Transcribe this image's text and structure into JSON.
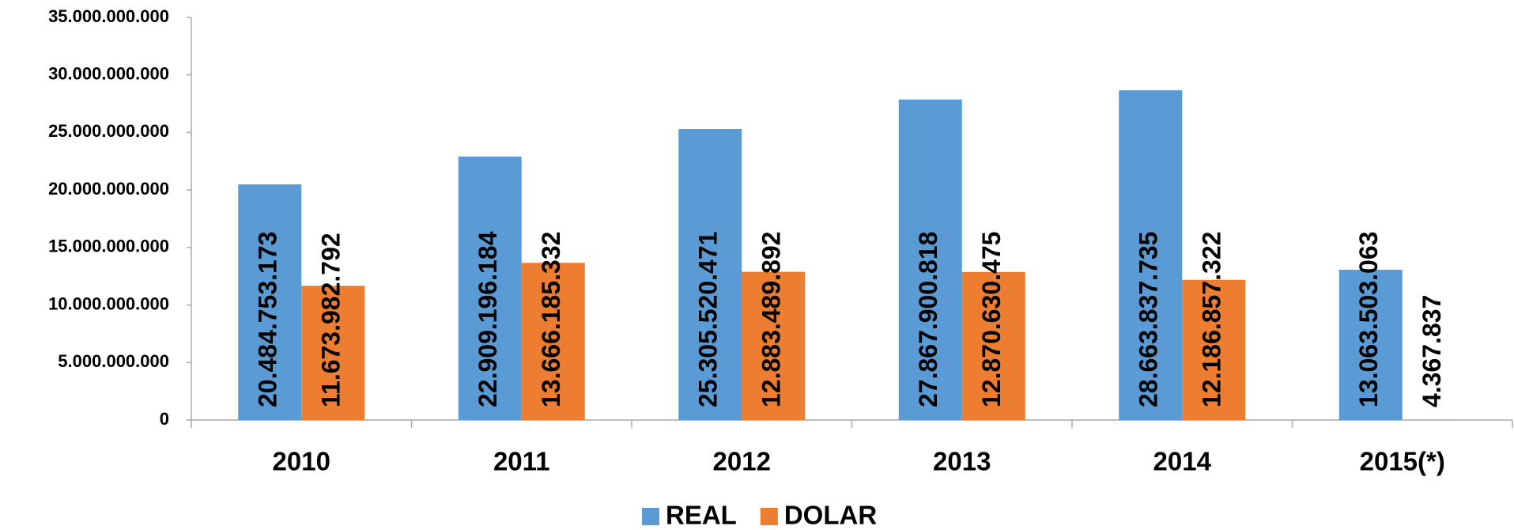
{
  "chart_data": {
    "type": "bar",
    "categories": [
      "2010",
      "2011",
      "2012",
      "2013",
      "2014",
      "2015(*)"
    ],
    "series": [
      {
        "name": "REAL",
        "color": "#5b9bd5",
        "values": [
          20484753173,
          22909196184,
          25305520471,
          27867900818,
          28663837735,
          13063503063
        ],
        "value_labels": [
          "20.484.753.173",
          "22.909.196.184",
          "25.305.520.471",
          "27.867.900.818",
          "28.663.837.735",
          "13.063.503.063"
        ]
      },
      {
        "name": "DOLAR",
        "color": "#ed7d31",
        "values": [
          11673982792,
          13666185332,
          12883489892,
          12870630475,
          12186857322,
          4367837
        ],
        "value_labels": [
          "11.673.982.792",
          "13.666.185.332",
          "12.883.489.892",
          "12.870.630.475",
          "12.186.857.322",
          "4.367.837"
        ]
      }
    ],
    "ylim": [
      0,
      35000000000
    ],
    "yticks": [
      0,
      {
        "value": 5000000000,
        "label": "5.000.000.000"
      },
      {
        "value": 10000000000,
        "label": "10.000.000.000"
      },
      {
        "value": 15000000000,
        "label": "15.000.000.000"
      },
      {
        "value": 20000000000,
        "label": "20.000.000.000"
      },
      {
        "value": 25000000000,
        "label": "25.000.000.000"
      },
      {
        "value": 30000000000,
        "label": "30.000.000.000"
      },
      {
        "value": 35000000000,
        "label": "35.000.000.000"
      }
    ],
    "grid": false,
    "legend": "bottom"
  }
}
